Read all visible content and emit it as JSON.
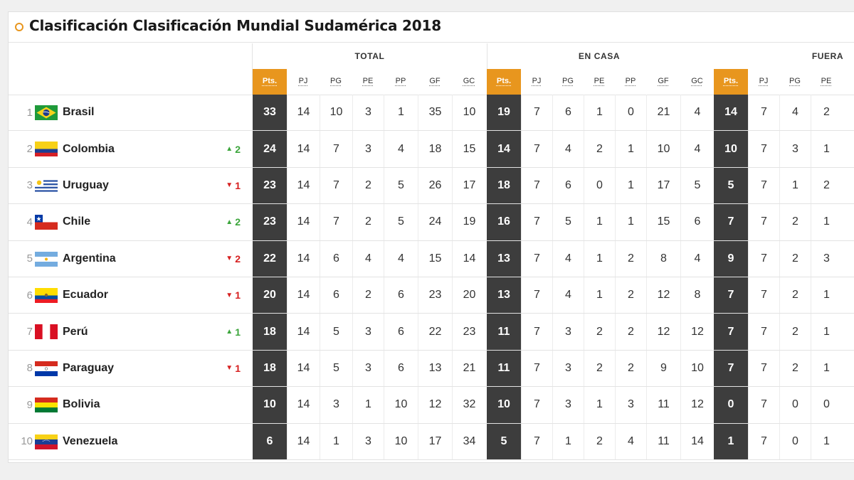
{
  "title": "Clasificación Clasificación Mundial Sudamérica 2018",
  "groups": {
    "total": "TOTAL",
    "casa": "EN CASA",
    "fuera": "FUERA"
  },
  "headers": {
    "total": [
      "Pts.",
      "PJ",
      "PG",
      "PE",
      "PP",
      "GF",
      "GC"
    ],
    "casa": [
      "Pts.",
      "PJ",
      "PG",
      "PE",
      "PP",
      "GF",
      "GC"
    ],
    "fuera": [
      "Pts.",
      "PJ",
      "PG",
      "PE"
    ]
  },
  "colors": {
    "accent": "#e8961e",
    "points_bg": "#3d3d3d",
    "up": "#3ba53b",
    "down": "#d62020"
  },
  "rows": [
    {
      "pos": "1",
      "team": "Brasil",
      "flag": "brazil-flag",
      "trend_dir": "",
      "trend": "",
      "total": [
        "33",
        "14",
        "10",
        "3",
        "1",
        "35",
        "10"
      ],
      "casa": [
        "19",
        "7",
        "6",
        "1",
        "0",
        "21",
        "4"
      ],
      "fuera": [
        "14",
        "7",
        "4",
        "2"
      ]
    },
    {
      "pos": "2",
      "team": "Colombia",
      "flag": "colombia-flag",
      "trend_dir": "up",
      "trend": "2",
      "total": [
        "24",
        "14",
        "7",
        "3",
        "4",
        "18",
        "15"
      ],
      "casa": [
        "14",
        "7",
        "4",
        "2",
        "1",
        "10",
        "4"
      ],
      "fuera": [
        "10",
        "7",
        "3",
        "1"
      ]
    },
    {
      "pos": "3",
      "team": "Uruguay",
      "flag": "uruguay-flag",
      "trend_dir": "down",
      "trend": "1",
      "total": [
        "23",
        "14",
        "7",
        "2",
        "5",
        "26",
        "17"
      ],
      "casa": [
        "18",
        "7",
        "6",
        "0",
        "1",
        "17",
        "5"
      ],
      "fuera": [
        "5",
        "7",
        "1",
        "2"
      ]
    },
    {
      "pos": "4",
      "team": "Chile",
      "flag": "chile-flag",
      "trend_dir": "up",
      "trend": "2",
      "total": [
        "23",
        "14",
        "7",
        "2",
        "5",
        "24",
        "19"
      ],
      "casa": [
        "16",
        "7",
        "5",
        "1",
        "1",
        "15",
        "6"
      ],
      "fuera": [
        "7",
        "7",
        "2",
        "1"
      ]
    },
    {
      "pos": "5",
      "team": "Argentina",
      "flag": "argentina-flag",
      "trend_dir": "down",
      "trend": "2",
      "total": [
        "22",
        "14",
        "6",
        "4",
        "4",
        "15",
        "14"
      ],
      "casa": [
        "13",
        "7",
        "4",
        "1",
        "2",
        "8",
        "4"
      ],
      "fuera": [
        "9",
        "7",
        "2",
        "3"
      ]
    },
    {
      "pos": "6",
      "team": "Ecuador",
      "flag": "ecuador-flag",
      "trend_dir": "down",
      "trend": "1",
      "total": [
        "20",
        "14",
        "6",
        "2",
        "6",
        "23",
        "20"
      ],
      "casa": [
        "13",
        "7",
        "4",
        "1",
        "2",
        "12",
        "8"
      ],
      "fuera": [
        "7",
        "7",
        "2",
        "1"
      ]
    },
    {
      "pos": "7",
      "team": "Perú",
      "flag": "peru-flag",
      "trend_dir": "up",
      "trend": "1",
      "total": [
        "18",
        "14",
        "5",
        "3",
        "6",
        "22",
        "23"
      ],
      "casa": [
        "11",
        "7",
        "3",
        "2",
        "2",
        "12",
        "12"
      ],
      "fuera": [
        "7",
        "7",
        "2",
        "1"
      ]
    },
    {
      "pos": "8",
      "team": "Paraguay",
      "flag": "paraguay-flag",
      "trend_dir": "down",
      "trend": "1",
      "total": [
        "18",
        "14",
        "5",
        "3",
        "6",
        "13",
        "21"
      ],
      "casa": [
        "11",
        "7",
        "3",
        "2",
        "2",
        "9",
        "10"
      ],
      "fuera": [
        "7",
        "7",
        "2",
        "1"
      ]
    },
    {
      "pos": "9",
      "team": "Bolivia",
      "flag": "bolivia-flag",
      "trend_dir": "",
      "trend": "",
      "total": [
        "10",
        "14",
        "3",
        "1",
        "10",
        "12",
        "32"
      ],
      "casa": [
        "10",
        "7",
        "3",
        "1",
        "3",
        "11",
        "12"
      ],
      "fuera": [
        "0",
        "7",
        "0",
        "0"
      ]
    },
    {
      "pos": "10",
      "team": "Venezuela",
      "flag": "venezuela-flag",
      "trend_dir": "",
      "trend": "",
      "total": [
        "6",
        "14",
        "1",
        "3",
        "10",
        "17",
        "34"
      ],
      "casa": [
        "5",
        "7",
        "1",
        "2",
        "4",
        "11",
        "14"
      ],
      "fuera": [
        "1",
        "7",
        "0",
        "1"
      ]
    }
  ]
}
